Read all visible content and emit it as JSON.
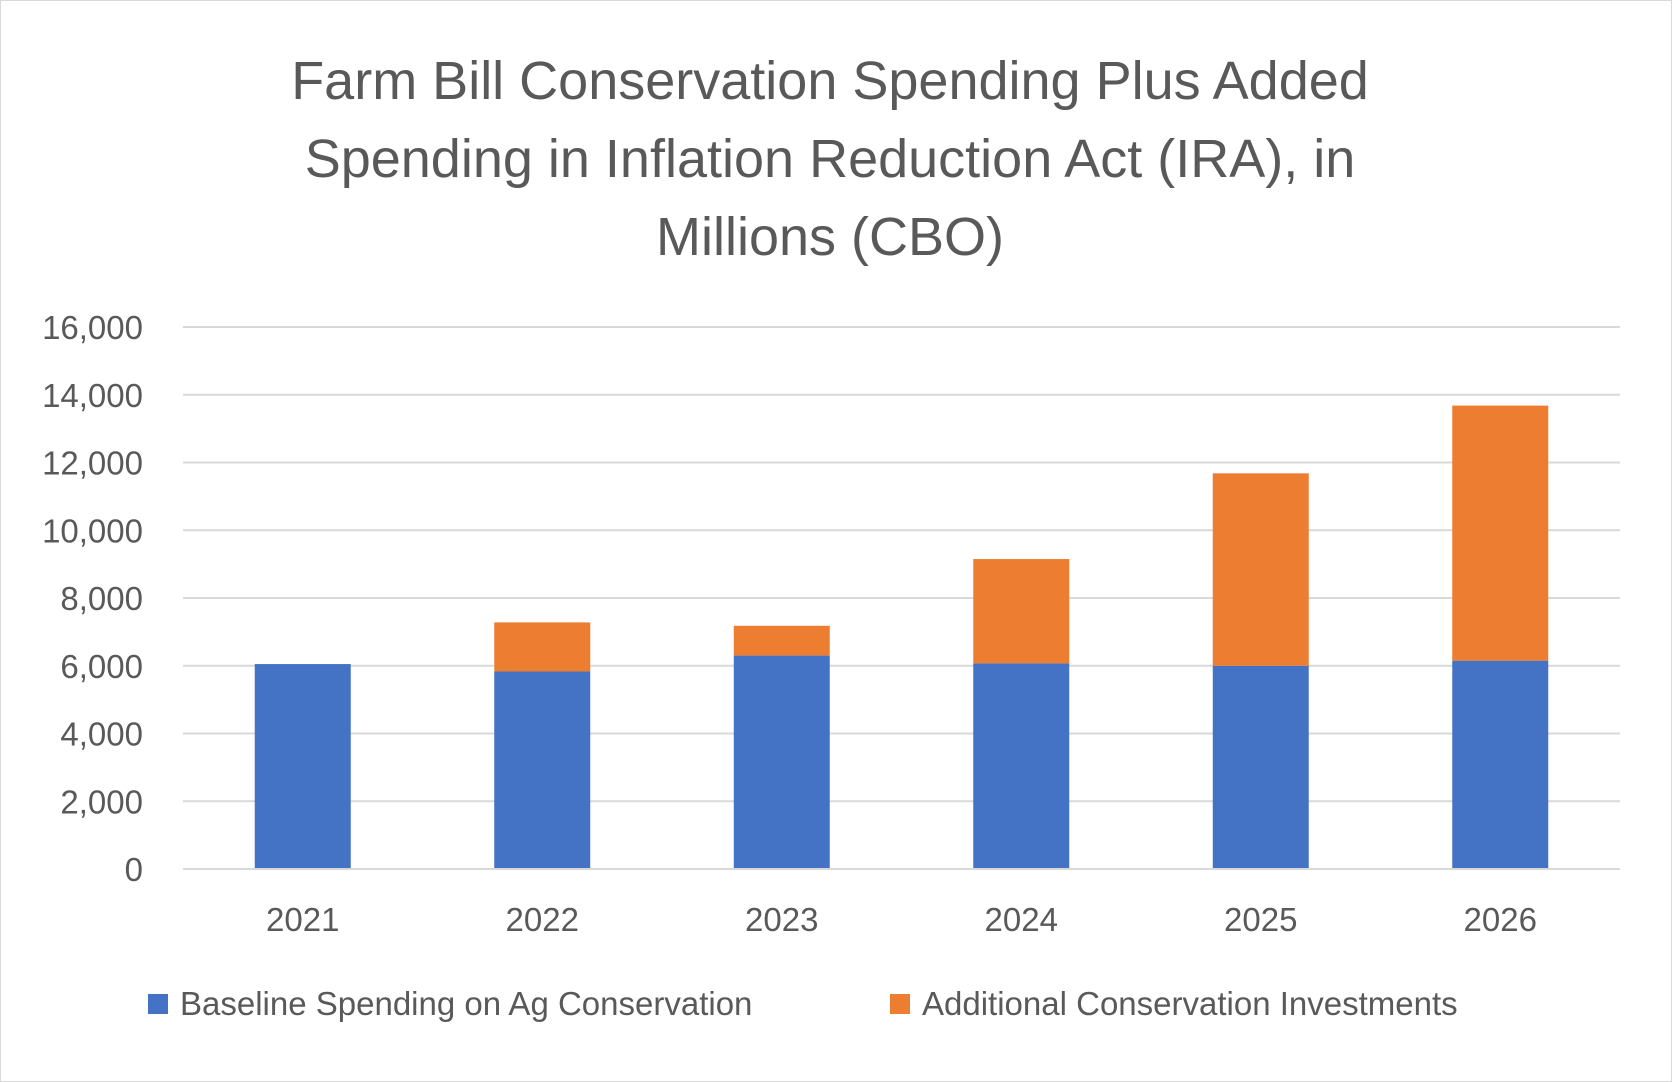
{
  "chart_data": {
    "type": "bar",
    "stacked": true,
    "title_lines": [
      "Farm Bill Conservation Spending Plus Added",
      "Spending in Inflation Reduction Act (IRA), in",
      "Millions (CBO)"
    ],
    "categories": [
      "2021",
      "2022",
      "2023",
      "2024",
      "2025",
      "2026"
    ],
    "series": [
      {
        "name": "Baseline Spending on Ag Conservation",
        "color": "#4472c4",
        "values": [
          6050,
          5830,
          6300,
          6070,
          6000,
          6150
        ]
      },
      {
        "name": "Additional Conservation Investments",
        "color": "#ed7d31",
        "values": [
          0,
          1450,
          880,
          3080,
          5680,
          7530
        ]
      }
    ],
    "ylim": [
      0,
      16000
    ],
    "yticks": [
      "0",
      "2,000",
      "4,000",
      "6,000",
      "8,000",
      "10,000",
      "12,000",
      "14,000",
      "16,000"
    ],
    "ytick_values": [
      0,
      2000,
      4000,
      6000,
      8000,
      10000,
      12000,
      14000,
      16000
    ],
    "grid": true,
    "gridline_color": "#d9d9d9",
    "legend_position": "bottom"
  }
}
